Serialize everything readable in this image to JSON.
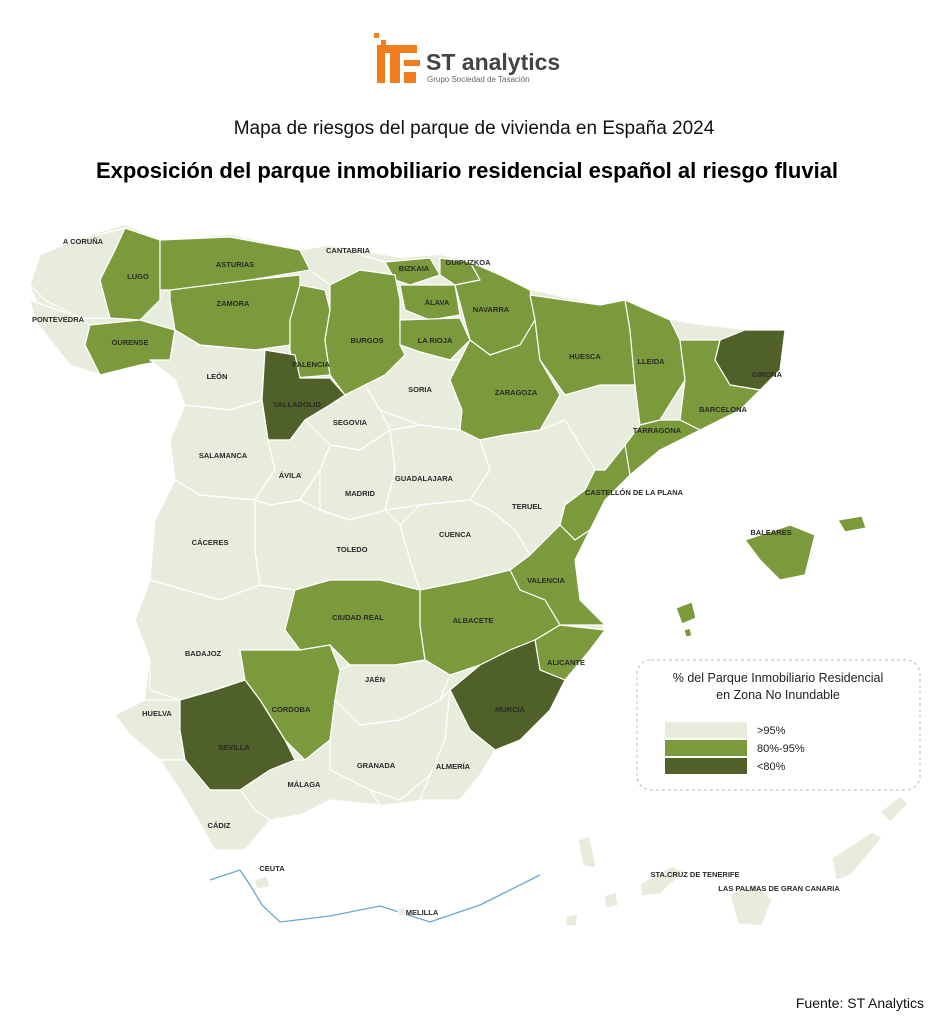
{
  "logo": {
    "name": "ST analytics",
    "tagline": "Grupo Sociedad de Tasación"
  },
  "subtitle": "Mapa de riesgos del parque de vivienda en España 2024",
  "title": "Exposición del parque inmobiliario residencial español al riesgo fluvial",
  "legend": {
    "title_lines": [
      "% del Parque Inmobiliario Residencial",
      "en Zona No Inundable"
    ],
    "classes": [
      {
        "label": ">95%",
        "color": "#e8ecdd"
      },
      {
        "label": "80%-95%",
        "color": "#7b9a3c"
      },
      {
        "label": "<80%",
        "color": "#4f6128"
      }
    ]
  },
  "provinces": [
    {
      "name": "A CORUÑA",
      "class": 0
    },
    {
      "name": "LUGO",
      "class": 1
    },
    {
      "name": "PONTEVEDRA",
      "class": 0
    },
    {
      "name": "OURENSE",
      "class": 1
    },
    {
      "name": "ASTURIAS",
      "class": 1
    },
    {
      "name": "CANTABRIA",
      "class": 0
    },
    {
      "name": "BIZKAIA",
      "class": 1
    },
    {
      "name": "GUIPUZKOA",
      "class": 1
    },
    {
      "name": "ÁLAVA",
      "class": 1
    },
    {
      "name": "NAVARRA",
      "class": 1
    },
    {
      "name": "ZAMORA",
      "class": 1
    },
    {
      "name": "LEÓN",
      "class": 0
    },
    {
      "name": "PALENCIA",
      "class": 1
    },
    {
      "name": "BURGOS",
      "class": 1
    },
    {
      "name": "LA RIOJA",
      "class": 1
    },
    {
      "name": "VALLADOLID",
      "class": 2
    },
    {
      "name": "SORIA",
      "class": 0
    },
    {
      "name": "SEGOVIA",
      "class": 0
    },
    {
      "name": "ZARAGOZA",
      "class": 1
    },
    {
      "name": "HUESCA",
      "class": 1
    },
    {
      "name": "LLEIDA",
      "class": 1
    },
    {
      "name": "GIRONA",
      "class": 2
    },
    {
      "name": "BARCELONA",
      "class": 1
    },
    {
      "name": "TARRAGONA",
      "class": 1
    },
    {
      "name": "SALAMANCA",
      "class": 0
    },
    {
      "name": "ÁVILA",
      "class": 0
    },
    {
      "name": "MADRID",
      "class": 0
    },
    {
      "name": "GUADALAJARA",
      "class": 0
    },
    {
      "name": "TERUEL",
      "class": 0
    },
    {
      "name": "CASTELLÓN DE LA PLANA",
      "class": 1
    },
    {
      "name": "CÁCERES",
      "class": 0
    },
    {
      "name": "TOLEDO",
      "class": 0
    },
    {
      "name": "CUENCA",
      "class": 0
    },
    {
      "name": "VALENCIA",
      "class": 1
    },
    {
      "name": "BALEARES",
      "class": 1
    },
    {
      "name": "BADAJOZ",
      "class": 0
    },
    {
      "name": "CIUDAD REAL",
      "class": 1
    },
    {
      "name": "ALBACETE",
      "class": 1
    },
    {
      "name": "ALICANTE",
      "class": 1
    },
    {
      "name": "JAÉN",
      "class": 0
    },
    {
      "name": "CORDOBA",
      "class": 1
    },
    {
      "name": "MURCIA",
      "class": 2
    },
    {
      "name": "HUELVA",
      "class": 0
    },
    {
      "name": "SEVILLA",
      "class": 2
    },
    {
      "name": "GRANADA",
      "class": 0
    },
    {
      "name": "ALMERÍA",
      "class": 0
    },
    {
      "name": "MÁLAGA",
      "class": 0
    },
    {
      "name": "CÁDIZ",
      "class": 0
    },
    {
      "name": "CEUTA",
      "class": 0
    },
    {
      "name": "MELILLA",
      "class": 0
    },
    {
      "name": "STA.CRUZ DE TENERIFE",
      "class": 0
    },
    {
      "name": "LAS PALMAS DE GRAN CANARIA",
      "class": 0
    }
  ],
  "source": "Fuente: ST Analytics"
}
